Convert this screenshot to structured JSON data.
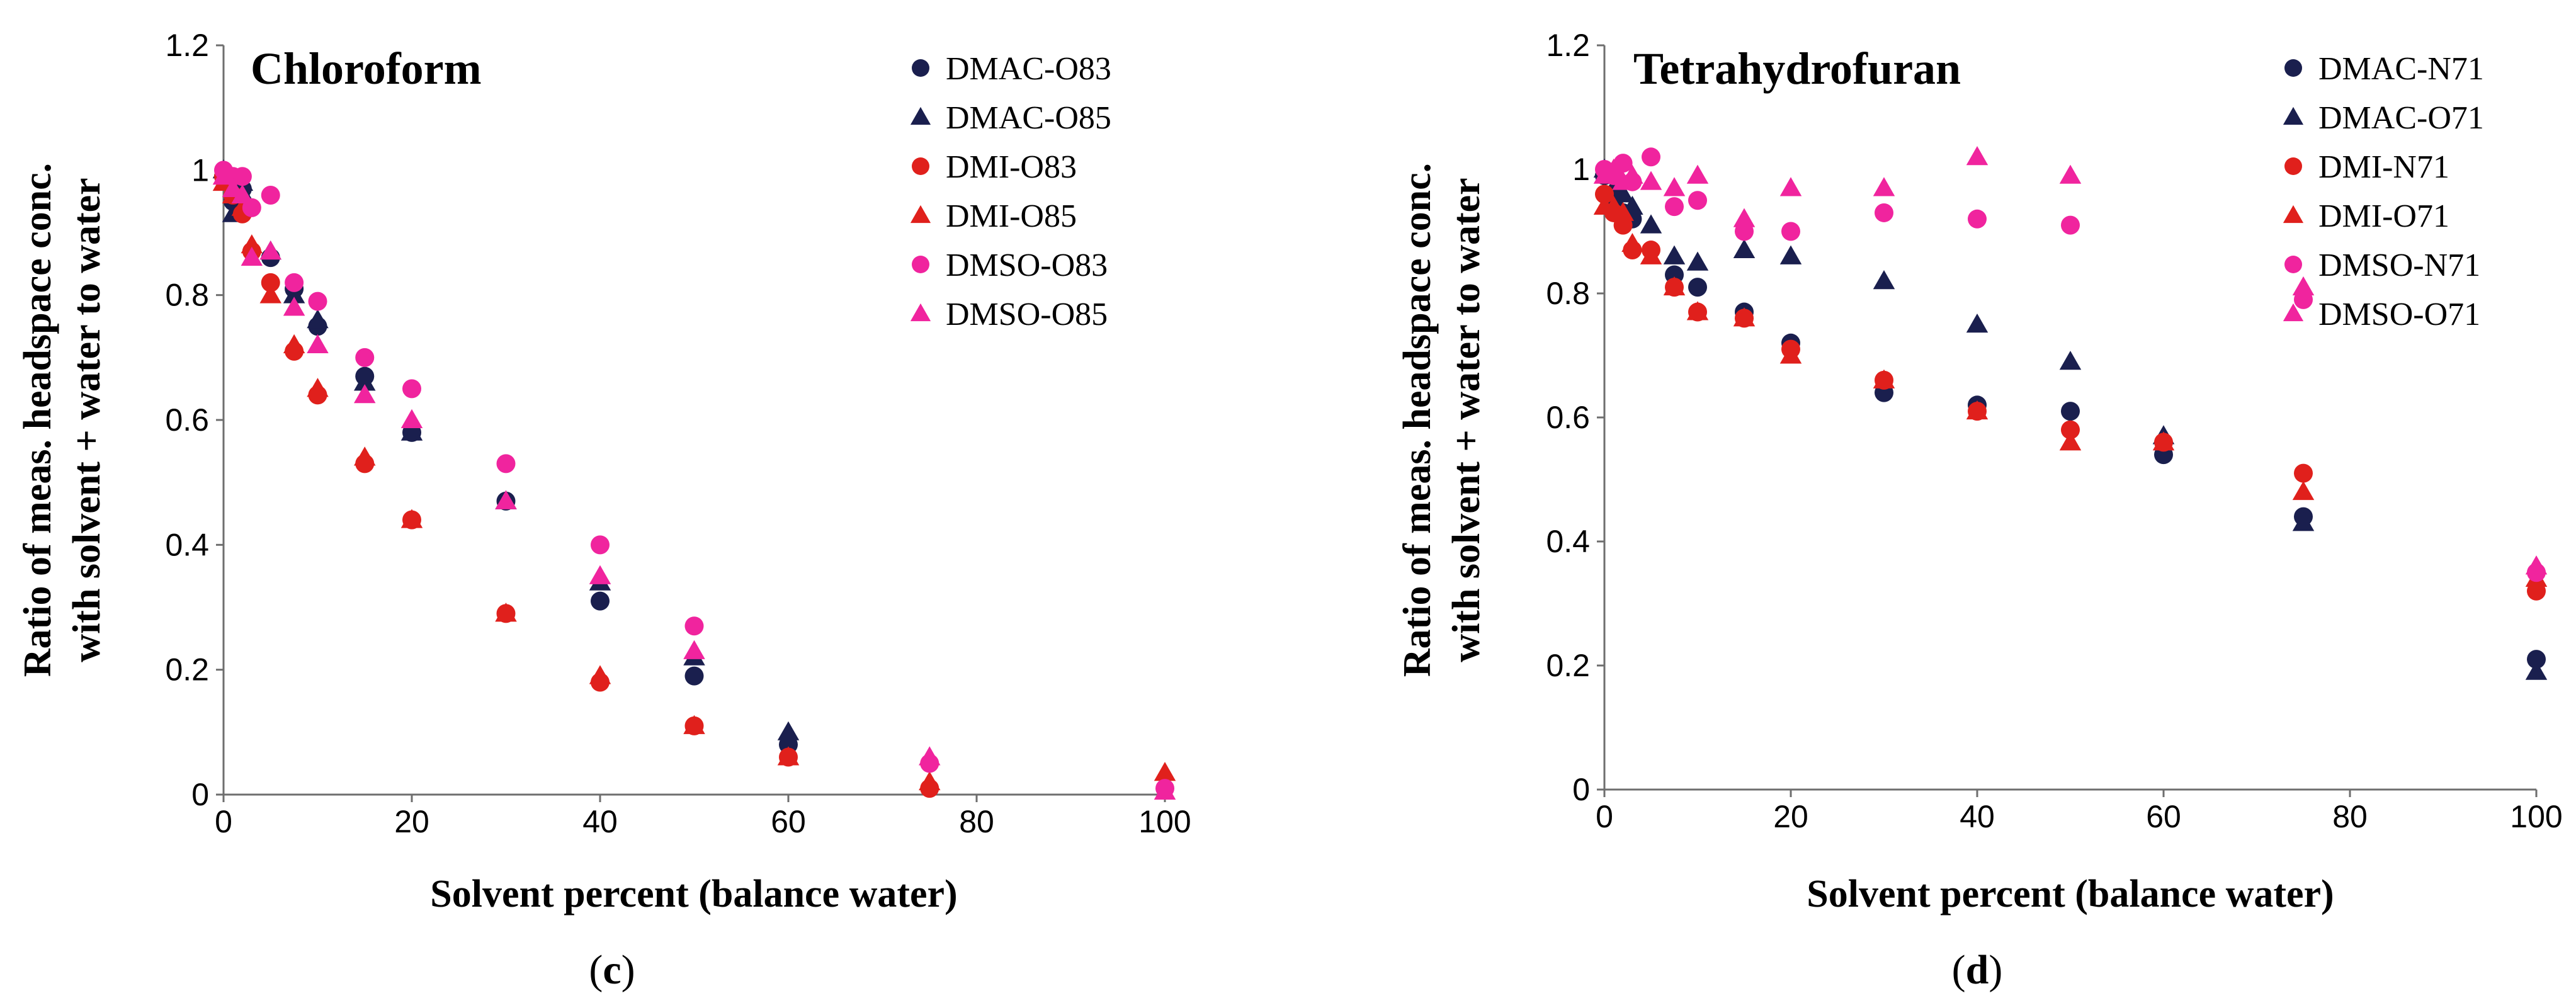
{
  "chart_data": [
    {
      "type": "scatter",
      "title": "Chloroform",
      "caption_prefix": "(",
      "caption_letter": "c",
      "caption_suffix": ")",
      "xlabel": "Solvent percent (balance water)",
      "ylabel_line1": "Ratio of meas. headspace conc.",
      "ylabel_line2": "with solvent + water to water",
      "xlim": [
        0,
        100
      ],
      "ylim": [
        0,
        1.2
      ],
      "xticks": [
        0,
        20,
        40,
        60,
        80,
        100
      ],
      "yticks": [
        0,
        0.2,
        0.4,
        0.6,
        0.8,
        1,
        1.2
      ],
      "ytick_labels": [
        "0",
        "0.2",
        "0.4",
        "0.6",
        "0.8",
        "1",
        "1.2"
      ],
      "grid": false,
      "legend_position": "top-right",
      "series": [
        {
          "name": "DMAC-O83",
          "marker": "circle",
          "color": "#1a1f4e",
          "x": [
            0,
            1,
            2,
            2.5,
            5,
            7.5,
            10,
            15,
            20,
            30,
            40,
            50,
            60
          ],
          "y": [
            0.99,
            0.95,
            0.97,
            0.94,
            0.86,
            0.81,
            0.75,
            0.67,
            0.58,
            0.47,
            0.31,
            0.19,
            0.08
          ]
        },
        {
          "name": "DMAC-O85",
          "marker": "triangle",
          "color": "#1a1f4e",
          "x": [
            0,
            1,
            2,
            2.5,
            5,
            7.5,
            10,
            15,
            20,
            30,
            40,
            50,
            60
          ],
          "y": [
            1.0,
            0.93,
            0.98,
            0.95,
            0.87,
            0.8,
            0.76,
            0.66,
            0.58,
            0.47,
            0.34,
            0.22,
            0.1
          ]
        },
        {
          "name": "DMI-O83",
          "marker": "circle",
          "color": "#e0201c",
          "x": [
            0,
            1,
            2,
            3,
            5,
            7.5,
            10,
            15,
            20,
            30,
            40,
            50,
            60,
            75
          ],
          "y": [
            0.99,
            0.96,
            0.93,
            0.87,
            0.82,
            0.71,
            0.64,
            0.53,
            0.44,
            0.29,
            0.18,
            0.11,
            0.06,
            0.01
          ]
        },
        {
          "name": "DMI-O85",
          "marker": "triangle",
          "color": "#e0201c",
          "x": [
            0,
            1,
            2,
            3,
            5,
            7.5,
            10,
            15,
            20,
            30,
            40,
            50,
            60,
            75,
            100
          ],
          "y": [
            0.98,
            0.96,
            0.94,
            0.88,
            0.8,
            0.72,
            0.65,
            0.54,
            0.44,
            0.29,
            0.19,
            0.11,
            0.06,
            0.02,
            0.035
          ]
        },
        {
          "name": "DMSO-O83",
          "marker": "circle",
          "color": "#f0249e",
          "x": [
            0,
            1,
            2,
            3,
            5,
            7.5,
            10,
            15,
            20,
            30,
            40,
            50,
            75,
            100
          ],
          "y": [
            1.0,
            0.99,
            0.99,
            0.94,
            0.96,
            0.82,
            0.79,
            0.7,
            0.65,
            0.53,
            0.4,
            0.27,
            0.05,
            0.01
          ]
        },
        {
          "name": "DMSO-O85",
          "marker": "triangle",
          "color": "#f0249e",
          "x": [
            0,
            1,
            2,
            3,
            5,
            7.5,
            10,
            15,
            20,
            30,
            40,
            50,
            75,
            100
          ],
          "y": [
            0.99,
            0.97,
            0.96,
            0.86,
            0.87,
            0.78,
            0.72,
            0.64,
            0.6,
            0.47,
            0.35,
            0.23,
            0.06,
            0.005
          ]
        }
      ]
    },
    {
      "type": "scatter",
      "title": "Tetrahydrofuran",
      "caption_prefix": "(",
      "caption_letter": "d",
      "caption_suffix": ")",
      "xlabel": "Solvent percent (balance water)",
      "ylabel_line1": "Ratio of meas. headspace conc.",
      "ylabel_line2": "with solvent + water to water",
      "xlim": [
        0,
        100
      ],
      "ylim": [
        0,
        1.2
      ],
      "xticks": [
        0,
        20,
        40,
        60,
        80,
        100
      ],
      "yticks": [
        0,
        0.2,
        0.4,
        0.6,
        0.8,
        1,
        1.2
      ],
      "ytick_labels": [
        "0",
        "0.2",
        "0.4",
        "0.6",
        "0.8",
        "1",
        "1.2"
      ],
      "grid": false,
      "legend_position": "top-right",
      "series": [
        {
          "name": "DMAC-N71",
          "marker": "circle",
          "color": "#1a1f4e",
          "x": [
            0,
            1,
            2,
            3,
            7.5,
            10,
            15,
            20,
            30,
            40,
            50,
            60,
            75,
            100
          ],
          "y": [
            0.99,
            0.95,
            0.93,
            0.92,
            0.83,
            0.81,
            0.77,
            0.72,
            0.64,
            0.62,
            0.61,
            0.54,
            0.44,
            0.21
          ]
        },
        {
          "name": "DMAC-O71",
          "marker": "triangle",
          "color": "#1a1f4e",
          "x": [
            0,
            1,
            2,
            3,
            5,
            7.5,
            10,
            15,
            20,
            30,
            40,
            50,
            60,
            75,
            100
          ],
          "y": [
            1.0,
            0.97,
            0.96,
            0.94,
            0.91,
            0.86,
            0.85,
            0.87,
            0.86,
            0.82,
            0.75,
            0.69,
            0.57,
            0.43,
            0.19
          ]
        },
        {
          "name": "DMI-N71",
          "marker": "circle",
          "color": "#e0201c",
          "x": [
            0,
            1,
            2,
            3,
            5,
            7.5,
            10,
            15,
            20,
            30,
            40,
            50,
            60,
            75,
            100
          ],
          "y": [
            0.96,
            0.93,
            0.91,
            0.87,
            0.87,
            0.81,
            0.77,
            0.76,
            0.71,
            0.66,
            0.61,
            0.58,
            0.56,
            0.51,
            0.32
          ]
        },
        {
          "name": "DMI-O71",
          "marker": "triangle",
          "color": "#e0201c",
          "x": [
            0,
            1,
            2,
            3,
            5,
            7.5,
            10,
            15,
            20,
            30,
            40,
            50,
            60,
            75,
            100
          ],
          "y": [
            0.94,
            0.94,
            0.93,
            0.88,
            0.86,
            0.81,
            0.77,
            0.76,
            0.7,
            0.66,
            0.61,
            0.56,
            0.56,
            0.48,
            0.34
          ]
        },
        {
          "name": "DMSO-N71",
          "marker": "circle",
          "color": "#f0249e",
          "x": [
            0,
            1,
            2,
            3,
            5,
            7.5,
            10,
            15,
            20,
            30,
            40,
            50,
            75,
            100
          ],
          "y": [
            1.0,
            0.99,
            1.01,
            0.98,
            1.02,
            0.94,
            0.95,
            0.9,
            0.9,
            0.93,
            0.92,
            0.91,
            0.79,
            0.35
          ]
        },
        {
          "name": "DMSO-O71",
          "marker": "triangle",
          "color": "#f0249e",
          "x": [
            0,
            1,
            2,
            3,
            5,
            7.5,
            10,
            15,
            20,
            30,
            40,
            50,
            75,
            100
          ],
          "y": [
            0.99,
            1.0,
            0.98,
            0.99,
            0.98,
            0.97,
            0.99,
            0.92,
            0.97,
            0.97,
            1.02,
            0.99,
            0.81,
            0.36
          ]
        }
      ]
    }
  ]
}
